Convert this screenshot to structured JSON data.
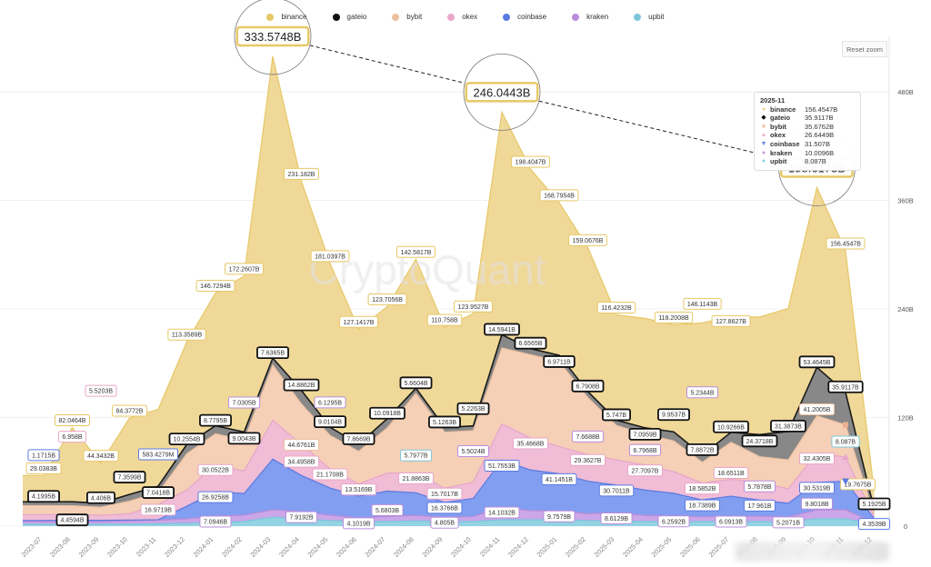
{
  "reset_zoom_label": "Reset zoom",
  "watermark": "CryptoQuant",
  "tooltip": {
    "title": "2025-11",
    "rows": [
      {
        "marker": "●",
        "color": "#ecd08a",
        "name": "binance",
        "value": "156.4547B"
      },
      {
        "marker": "◆",
        "color": "#111111",
        "name": "gateio",
        "value": "35.9117B"
      },
      {
        "marker": "■",
        "color": "#f2c8ad",
        "name": "bybit",
        "value": "35.6762B"
      },
      {
        "marker": "▲",
        "color": "#eab3cf",
        "name": "okex",
        "value": "26.6449B"
      },
      {
        "marker": "▼",
        "color": "#6485e6",
        "name": "coinbase",
        "value": "31.507B"
      },
      {
        "marker": "●",
        "color": "#c59ae0",
        "name": "kraken",
        "value": "10.0096B"
      },
      {
        "marker": "●",
        "color": "#86cde0",
        "name": "upbit",
        "value": "8.087B"
      }
    ]
  },
  "chart_data": {
    "type": "area",
    "stacked": true,
    "x": [
      "2023-07",
      "2023-08",
      "2023-09",
      "2023-10",
      "2023-11",
      "2023-12",
      "2024-01",
      "2024-02",
      "2024-03",
      "2024-04",
      "2024-05",
      "2024-06",
      "2024-07",
      "2024-08",
      "2024-09",
      "2024-10",
      "2024-11",
      "2024-12",
      "2025-01",
      "2025-02",
      "2025-03",
      "2025-04",
      "2025-05",
      "2025-06",
      "2025-07",
      "2025-08",
      "2025-09",
      "2025-10",
      "2025-11",
      "2025-12"
    ],
    "y_ticks": [
      {
        "value": 0,
        "label": "0"
      },
      {
        "value": 120,
        "label": "120B"
      },
      {
        "value": 240,
        "label": "240B"
      },
      {
        "value": 360,
        "label": "360B"
      },
      {
        "value": 480,
        "label": "480B"
      }
    ],
    "ylim": [
      0,
      540
    ],
    "grid": true,
    "legend_position": "top",
    "callout_series": "binance",
    "callout_indices": [
      8,
      16,
      27
    ],
    "series": [
      {
        "name": "binance",
        "color": "#f0d898",
        "stroke": "#e6c867",
        "values": [
          29.0383,
          82.0464,
          44.3432,
          84.3772,
          85,
          113.3589,
          146.7294,
          172.2607,
          333.5748,
          231.182,
          181.0397,
          127.1417,
          123.7056,
          142.5817,
          110.758,
          123.9527,
          246.0443,
          198.4047,
          168.7954,
          159.0676,
          116.4232,
          121,
          118.2008,
          146.1143,
          127.8627,
          130,
          136,
          198.6173,
          156.4547,
          19.7675
        ],
        "labels": [
          "29.0383B",
          "82.0464B",
          "44.3432B",
          "84.3772B",
          null,
          "113.3589B",
          "146.7294B",
          "172.2607B",
          "333.5748B",
          "231.182B",
          "181.0397B",
          "127.1417B",
          "123.7056B",
          "142.5817B",
          "110.758B",
          "123.9527B",
          "246.0443B",
          "198.4047B",
          "168.7954B",
          "159.0676B",
          "116.4232B",
          null,
          "118.2008B",
          "146.1143B",
          "127.8627B",
          null,
          null,
          "198.6173B",
          "156.4547B",
          "19.7675B"
        ]
      },
      {
        "name": "gateio",
        "color": "#888888",
        "stroke": "#1a1a1a",
        "values": [
          4.1995,
          4.4594,
          4.406,
          7.3599,
          7.0418,
          10.2554,
          8.7795,
          9.0043,
          7.6365,
          14.8862,
          9.0104,
          7.8669,
          10.0918,
          5.6604,
          5.1263,
          5.2263,
          14.5941,
          6.6565,
          6.9711,
          6.7908,
          5.747,
          7.0959,
          9.9537,
          7.8872,
          10.9266,
          24.3718,
          31.3873,
          53.4645,
          35.9117,
          5.1925
        ],
        "labels": [
          "4.1995B",
          "4.4594B",
          "4.406B",
          "7.3599B",
          "7.0418B",
          "10.2554B",
          "8.7795B",
          "9.0043B",
          "7.6365B",
          "14.8862B",
          "9.0104B",
          "7.8669B",
          "10.0918B",
          "5.6604B",
          "5.1263B",
          "5.2263B",
          "14.5941B",
          "6.6565B",
          "6.9711B",
          "6.7908B",
          "5.747B",
          "7.0959B",
          "9.9537B",
          "7.8872B",
          "10.9266B",
          "24.3718B",
          "31.3873B",
          "53.4645B",
          "35.9117B",
          "5.1925B"
        ]
      },
      {
        "name": "bybit",
        "color": "#f5d0b6",
        "stroke": "#ecc0a0",
        "values": [
          10,
          9,
          9,
          14,
          13,
          40,
          34,
          34,
          61,
          44.6761,
          37,
          36,
          50,
          88,
          62,
          57,
          84,
          92,
          94,
          63,
          38,
          34,
          34,
          23,
          41,
          28,
          32,
          41.2005,
          35.6762,
          3
        ],
        "labels": [
          null,
          null,
          null,
          null,
          null,
          null,
          null,
          null,
          null,
          "44.6761B",
          null,
          null,
          null,
          null,
          null,
          null,
          null,
          null,
          null,
          null,
          null,
          null,
          null,
          null,
          null,
          null,
          null,
          "41.2005B",
          null,
          null
        ]
      },
      {
        "name": "okex",
        "color": "#f0bcd6",
        "stroke": "#e8a6c8",
        "values": [
          6.5,
          6.958,
          5.5203,
          7,
          16.9719,
          18,
          30.0522,
          25,
          43,
          34.4958,
          21.1708,
          13.5169,
          20,
          21.8863,
          15.7017,
          18,
          40,
          35.4668,
          30,
          29.3627,
          28,
          27.7097,
          24,
          18.5852,
          18.6511,
          20,
          16,
          32.4305,
          26.6449,
          2
        ],
        "labels": [
          null,
          "6.958B",
          "5.5203B",
          null,
          "16.9719B",
          null,
          "30.0522B",
          null,
          null,
          "34.4958B",
          "21.1708B",
          "13.5169B",
          null,
          "21.8863B",
          "15.7017B",
          null,
          null,
          "35.4668B",
          null,
          "29.3627B",
          null,
          "27.7097B",
          null,
          "18.5852B",
          "18.6511B",
          null,
          null,
          "32.4305B",
          null,
          null
        ]
      },
      {
        "name": "coinbase",
        "color": "#829ef0",
        "stroke": "#5b7ae0",
        "values": [
          1.1715,
          1.5,
          1.4,
          1.0,
          0.5834279,
          14,
          26.9258,
          24,
          56,
          40,
          30,
          24,
          28,
          25,
          16.3766,
          20,
          51.7553,
          45,
          41.1451,
          36,
          30.7011,
          28,
          25,
          18.7389,
          22,
          17.961,
          15,
          30.5319,
          31.507,
          4.3539
        ],
        "labels": [
          "1.1715B",
          null,
          null,
          null,
          "583.4279M",
          null,
          "26.9258B",
          null,
          null,
          null,
          null,
          null,
          null,
          null,
          "16.3766B",
          null,
          "51.7553B",
          null,
          "41.1451B",
          null,
          "30.7011B",
          null,
          null,
          "18.7389B",
          null,
          "17.961B",
          null,
          "30.5319B",
          null,
          "4.3539B"
        ]
      },
      {
        "name": "kraken",
        "color": "#cba6e8",
        "stroke": "#b98ddb",
        "values": [
          3,
          3,
          3,
          3.5,
          4,
          5,
          7.0946,
          7.0305,
          8,
          7.9192,
          6.1295,
          4.1019,
          5.6803,
          6,
          4.805,
          5.5024,
          14.1032,
          10,
          9.7579,
          7.6688,
          8.6129,
          6.7968,
          6.2592,
          5.2344,
          6.0913,
          5.7878,
          5.2071,
          9.8018,
          10.0096,
          2
        ],
        "labels": [
          null,
          null,
          null,
          null,
          null,
          null,
          "7.0946B",
          "7.0305B",
          null,
          "7.9192B",
          "6.1295B",
          "4.1019B",
          "5.6803B",
          null,
          "4.805B",
          "5.5024B",
          "14.1032B",
          null,
          "9.7579B",
          "7.6688B",
          "8.6129B",
          "6.7968B",
          "6.2592B",
          "5.2344B",
          "6.0913B",
          "5.7878B",
          "5.2071B",
          "9.8018B",
          null,
          null
        ]
      },
      {
        "name": "upbit",
        "color": "#93d3e3",
        "stroke": "#7cc6da",
        "values": [
          2,
          2,
          2,
          2.2,
          2.5,
          3,
          4,
          5,
          10,
          8,
          6,
          5,
          5,
          5.7977,
          5,
          5,
          7,
          7,
          7,
          6,
          6,
          5,
          5,
          5,
          5,
          5,
          5,
          8,
          8.087,
          2
        ],
        "labels": [
          null,
          null,
          null,
          null,
          null,
          null,
          null,
          null,
          null,
          null,
          null,
          null,
          null,
          "5.7977B",
          null,
          null,
          null,
          null,
          null,
          null,
          null,
          null,
          null,
          null,
          null,
          null,
          null,
          null,
          "8.087B",
          null
        ]
      }
    ]
  }
}
